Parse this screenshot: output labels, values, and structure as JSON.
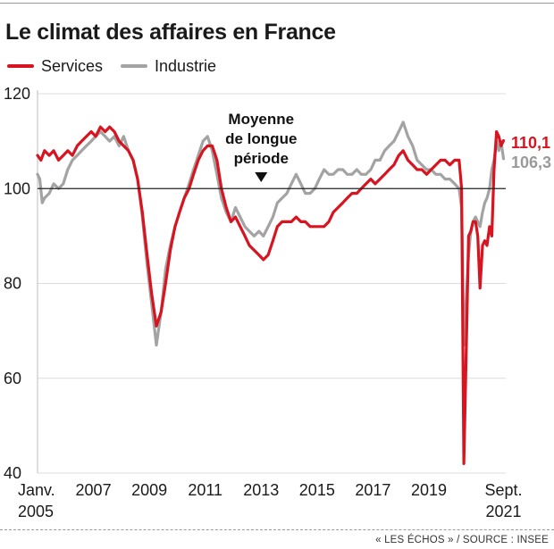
{
  "source_note": "« LES ÉCHOS » / SOURCE : INSEE",
  "colors": {
    "services": "#d7141f",
    "industrie": "#a3a3a3",
    "reference": "#222222",
    "grid": "#dcdcdc"
  },
  "chart_data": {
    "type": "line",
    "title": "Le climat des affaires en France",
    "xlabel": "",
    "ylabel": "",
    "ylim": [
      40,
      120
    ],
    "xlim": [
      2005.0,
      2021.75
    ],
    "yticks": [
      40,
      60,
      80,
      100,
      120
    ],
    "xticks": [
      {
        "x": 2005.0,
        "label": "Janv.",
        "sublabel": "2005"
      },
      {
        "x": 2007.0,
        "label": "2007"
      },
      {
        "x": 2009.0,
        "label": "2009"
      },
      {
        "x": 2011.0,
        "label": "2011"
      },
      {
        "x": 2013.0,
        "label": "2013"
      },
      {
        "x": 2015.0,
        "label": "2015"
      },
      {
        "x": 2017.0,
        "label": "2017"
      },
      {
        "x": 2019.0,
        "label": "2019"
      },
      {
        "x": 2021.67,
        "label": "Sept.",
        "sublabel": "2021"
      }
    ],
    "reference_line": {
      "y": 100,
      "label_lines": [
        "Moyenne",
        "de longue",
        "période"
      ],
      "x": 2013.0
    },
    "grid": "horizontal",
    "legend": "top-left",
    "series": [
      {
        "name": "Services",
        "color": "#d7141f",
        "end_label": "110,1",
        "points": [
          [
            2005.0,
            107
          ],
          [
            2005.12,
            106
          ],
          [
            2005.25,
            108
          ],
          [
            2005.42,
            107
          ],
          [
            2005.58,
            108
          ],
          [
            2005.75,
            106
          ],
          [
            2005.92,
            107
          ],
          [
            2006.08,
            108
          ],
          [
            2006.25,
            107
          ],
          [
            2006.42,
            109
          ],
          [
            2006.58,
            110
          ],
          [
            2006.75,
            111
          ],
          [
            2006.92,
            112
          ],
          [
            2007.08,
            111
          ],
          [
            2007.25,
            113
          ],
          [
            2007.42,
            112
          ],
          [
            2007.58,
            113
          ],
          [
            2007.75,
            112
          ],
          [
            2007.92,
            110
          ],
          [
            2008.08,
            109
          ],
          [
            2008.25,
            108
          ],
          [
            2008.42,
            106
          ],
          [
            2008.58,
            102
          ],
          [
            2008.75,
            95
          ],
          [
            2008.92,
            86
          ],
          [
            2009.08,
            78
          ],
          [
            2009.25,
            71
          ],
          [
            2009.42,
            74
          ],
          [
            2009.58,
            80
          ],
          [
            2009.75,
            87
          ],
          [
            2009.92,
            92
          ],
          [
            2010.08,
            95
          ],
          [
            2010.25,
            98
          ],
          [
            2010.42,
            100
          ],
          [
            2010.58,
            103
          ],
          [
            2010.75,
            106
          ],
          [
            2010.92,
            108
          ],
          [
            2011.08,
            109
          ],
          [
            2011.25,
            109
          ],
          [
            2011.42,
            106
          ],
          [
            2011.58,
            100
          ],
          [
            2011.75,
            96
          ],
          [
            2011.92,
            93
          ],
          [
            2012.08,
            94
          ],
          [
            2012.25,
            92
          ],
          [
            2012.42,
            90
          ],
          [
            2012.58,
            88
          ],
          [
            2012.75,
            87
          ],
          [
            2012.92,
            86
          ],
          [
            2013.08,
            85
          ],
          [
            2013.25,
            86
          ],
          [
            2013.42,
            89
          ],
          [
            2013.58,
            92
          ],
          [
            2013.75,
            93
          ],
          [
            2013.92,
            93
          ],
          [
            2014.08,
            93
          ],
          [
            2014.25,
            94
          ],
          [
            2014.42,
            93
          ],
          [
            2014.58,
            93
          ],
          [
            2014.75,
            92
          ],
          [
            2014.92,
            92
          ],
          [
            2015.08,
            92
          ],
          [
            2015.25,
            92
          ],
          [
            2015.42,
            93
          ],
          [
            2015.58,
            95
          ],
          [
            2015.75,
            96
          ],
          [
            2015.92,
            97
          ],
          [
            2016.08,
            98
          ],
          [
            2016.25,
            99
          ],
          [
            2016.42,
            99
          ],
          [
            2016.58,
            100
          ],
          [
            2016.75,
            101
          ],
          [
            2016.92,
            102
          ],
          [
            2017.08,
            101
          ],
          [
            2017.25,
            102
          ],
          [
            2017.42,
            103
          ],
          [
            2017.58,
            104
          ],
          [
            2017.75,
            105
          ],
          [
            2017.92,
            107
          ],
          [
            2018.08,
            108
          ],
          [
            2018.25,
            106
          ],
          [
            2018.42,
            105
          ],
          [
            2018.58,
            104
          ],
          [
            2018.75,
            104
          ],
          [
            2018.92,
            103
          ],
          [
            2019.08,
            104
          ],
          [
            2019.25,
            105
          ],
          [
            2019.42,
            106
          ],
          [
            2019.58,
            106
          ],
          [
            2019.75,
            105
          ],
          [
            2019.92,
            106
          ],
          [
            2020.08,
            106
          ],
          [
            2020.17,
            100
          ],
          [
            2020.25,
            42
          ],
          [
            2020.33,
            64
          ],
          [
            2020.42,
            90
          ],
          [
            2020.5,
            91
          ],
          [
            2020.58,
            93
          ],
          [
            2020.67,
            93
          ],
          [
            2020.75,
            90
          ],
          [
            2020.83,
            79
          ],
          [
            2020.92,
            88
          ],
          [
            2021.0,
            89
          ],
          [
            2021.08,
            88
          ],
          [
            2021.17,
            92
          ],
          [
            2021.25,
            90
          ],
          [
            2021.33,
            104
          ],
          [
            2021.42,
            112
          ],
          [
            2021.5,
            111
          ],
          [
            2021.58,
            109
          ],
          [
            2021.67,
            110.1
          ]
        ]
      },
      {
        "name": "Industrie",
        "color": "#a3a3a3",
        "end_label": "106,3",
        "points": [
          [
            2005.0,
            103
          ],
          [
            2005.08,
            102
          ],
          [
            2005.17,
            97
          ],
          [
            2005.25,
            98
          ],
          [
            2005.42,
            99
          ],
          [
            2005.58,
            101
          ],
          [
            2005.75,
            100
          ],
          [
            2005.92,
            101
          ],
          [
            2006.08,
            104
          ],
          [
            2006.25,
            106
          ],
          [
            2006.42,
            107
          ],
          [
            2006.58,
            108
          ],
          [
            2006.75,
            109
          ],
          [
            2006.92,
            110
          ],
          [
            2007.08,
            111
          ],
          [
            2007.25,
            112
          ],
          [
            2007.42,
            111
          ],
          [
            2007.58,
            110
          ],
          [
            2007.75,
            111
          ],
          [
            2007.92,
            109
          ],
          [
            2008.08,
            111
          ],
          [
            2008.25,
            108
          ],
          [
            2008.42,
            106
          ],
          [
            2008.58,
            102
          ],
          [
            2008.75,
            94
          ],
          [
            2008.92,
            84
          ],
          [
            2009.08,
            76
          ],
          [
            2009.25,
            67
          ],
          [
            2009.42,
            74
          ],
          [
            2009.58,
            83
          ],
          [
            2009.75,
            88
          ],
          [
            2009.92,
            92
          ],
          [
            2010.08,
            95
          ],
          [
            2010.25,
            98
          ],
          [
            2010.42,
            101
          ],
          [
            2010.58,
            104
          ],
          [
            2010.75,
            107
          ],
          [
            2010.92,
            110
          ],
          [
            2011.08,
            111
          ],
          [
            2011.25,
            108
          ],
          [
            2011.42,
            103
          ],
          [
            2011.58,
            98
          ],
          [
            2011.75,
            95
          ],
          [
            2011.92,
            93
          ],
          [
            2012.08,
            96
          ],
          [
            2012.25,
            94
          ],
          [
            2012.42,
            92
          ],
          [
            2012.58,
            91
          ],
          [
            2012.75,
            90
          ],
          [
            2012.92,
            91
          ],
          [
            2013.08,
            90
          ],
          [
            2013.25,
            92
          ],
          [
            2013.42,
            94
          ],
          [
            2013.58,
            97
          ],
          [
            2013.75,
            98
          ],
          [
            2013.92,
            99
          ],
          [
            2014.08,
            101
          ],
          [
            2014.25,
            103
          ],
          [
            2014.42,
            101
          ],
          [
            2014.58,
            99
          ],
          [
            2014.75,
            99
          ],
          [
            2014.92,
            100
          ],
          [
            2015.08,
            102
          ],
          [
            2015.25,
            104
          ],
          [
            2015.42,
            103
          ],
          [
            2015.58,
            103
          ],
          [
            2015.75,
            104
          ],
          [
            2015.92,
            104
          ],
          [
            2016.08,
            103
          ],
          [
            2016.25,
            103
          ],
          [
            2016.42,
            104
          ],
          [
            2016.58,
            103
          ],
          [
            2016.75,
            103
          ],
          [
            2016.92,
            104
          ],
          [
            2017.08,
            106
          ],
          [
            2017.25,
            106
          ],
          [
            2017.42,
            108
          ],
          [
            2017.58,
            109
          ],
          [
            2017.75,
            110
          ],
          [
            2017.92,
            112
          ],
          [
            2018.08,
            114
          ],
          [
            2018.25,
            111
          ],
          [
            2018.42,
            109
          ],
          [
            2018.58,
            106
          ],
          [
            2018.75,
            105
          ],
          [
            2018.92,
            104
          ],
          [
            2019.08,
            104
          ],
          [
            2019.25,
            103
          ],
          [
            2019.42,
            103
          ],
          [
            2019.58,
            102
          ],
          [
            2019.75,
            102
          ],
          [
            2019.92,
            101
          ],
          [
            2020.08,
            100
          ],
          [
            2020.17,
            96
          ],
          [
            2020.25,
            67
          ],
          [
            2020.33,
            76
          ],
          [
            2020.42,
            86
          ],
          [
            2020.5,
            91
          ],
          [
            2020.58,
            93
          ],
          [
            2020.67,
            94
          ],
          [
            2020.75,
            93
          ],
          [
            2020.83,
            92
          ],
          [
            2020.92,
            95
          ],
          [
            2021.0,
            97
          ],
          [
            2021.08,
            98
          ],
          [
            2021.17,
            100
          ],
          [
            2021.25,
            104
          ],
          [
            2021.33,
            106
          ],
          [
            2021.42,
            110
          ],
          [
            2021.5,
            108
          ],
          [
            2021.58,
            110
          ],
          [
            2021.67,
            106.3
          ]
        ]
      }
    ]
  }
}
